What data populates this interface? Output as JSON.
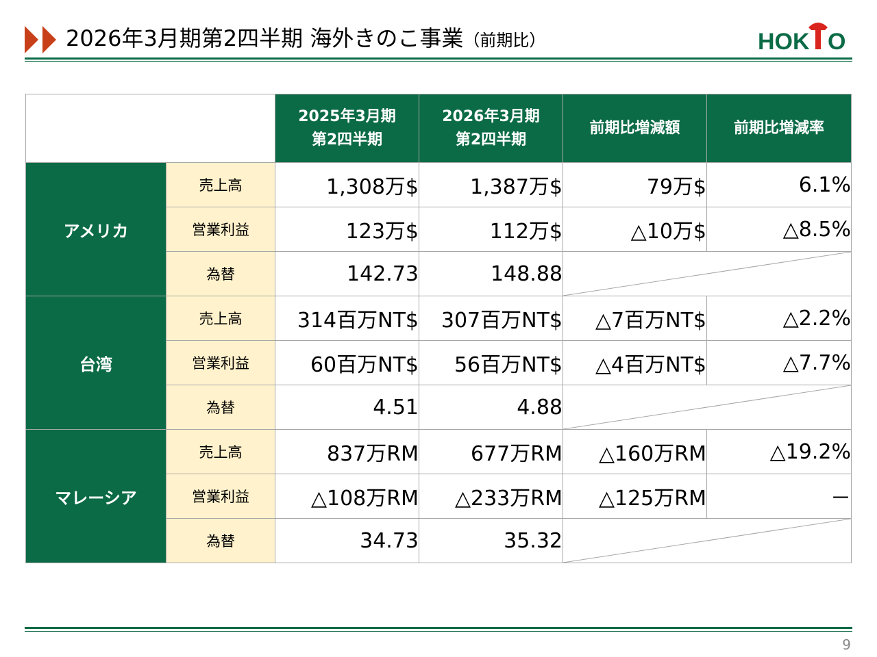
{
  "header": {
    "title": "2026年3月期第2四半期 海外きのこ事業",
    "title_suffix": "（前期比）",
    "logo_text": "HOKTO"
  },
  "table": {
    "columns": [
      {
        "line1": "2025年3月期",
        "line2": "第2四半期"
      },
      {
        "line1": "2026年3月期",
        "line2": "第2四半期"
      },
      {
        "line1": "前期比増減額"
      },
      {
        "line1": "前期比増減率"
      }
    ],
    "regions": [
      {
        "name": "アメリカ",
        "rows": [
          {
            "label": "売上高",
            "prev": "1,308万$",
            "curr": "1,387万$",
            "diff": "79万$",
            "rate": "6.1%"
          },
          {
            "label": "営業利益",
            "prev": "123万$",
            "curr": "112万$",
            "diff": "△10万$",
            "rate": "△8.5%"
          },
          {
            "label": "為替",
            "prev": "142.73",
            "curr": "148.88"
          }
        ]
      },
      {
        "name": "台湾",
        "rows": [
          {
            "label": "売上高",
            "prev": "314百万NT$",
            "curr": "307百万NT$",
            "diff": "△7百万NT$",
            "rate": "△2.2%"
          },
          {
            "label": "営業利益",
            "prev": "60百万NT$",
            "curr": "56百万NT$",
            "diff": "△4百万NT$",
            "rate": "△7.7%"
          },
          {
            "label": "為替",
            "prev": "4.51",
            "curr": "4.88"
          }
        ]
      },
      {
        "name": "マレーシア",
        "rows": [
          {
            "label": "売上高",
            "prev": "837万RM",
            "curr": "677万RM",
            "diff": "△160万RM",
            "rate": "△19.2%"
          },
          {
            "label": "営業利益",
            "prev": "△108万RM",
            "curr": "△233万RM",
            "diff": "△125万RM",
            "rate": "－"
          },
          {
            "label": "為替",
            "prev": "34.73",
            "curr": "35.32"
          }
        ]
      }
    ]
  },
  "footer": {
    "page_number": "9"
  },
  "colors": {
    "brand_green": "#0b6b46",
    "label_bg": "#fff2cc",
    "arrow_red": "#c8401a",
    "logo_red": "#d9251d"
  }
}
